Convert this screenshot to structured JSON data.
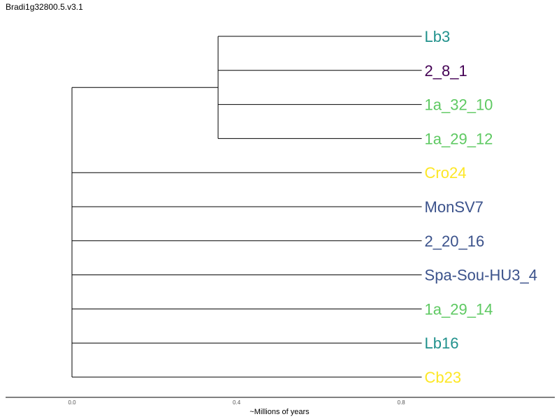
{
  "title": "Bradi1g32800.5.v3.1",
  "axis": {
    "label": "~Millions of years",
    "ticks": [
      "0.0",
      "0.4",
      "0.8"
    ]
  },
  "tree": {
    "root_age": 0.0,
    "clade_age": 0.355,
    "tip_age": 0.86,
    "leaves": [
      {
        "name": "Lb3",
        "color": "#21918c"
      },
      {
        "name": "2_8_1",
        "color": "#440154"
      },
      {
        "name": "1a_32_10",
        "color": "#5ec962"
      },
      {
        "name": "1a_29_12",
        "color": "#5ec962"
      },
      {
        "name": "Cro24",
        "color": "#fde725"
      },
      {
        "name": "MonSV7",
        "color": "#3b528b"
      },
      {
        "name": "2_20_16",
        "color": "#3b528b"
      },
      {
        "name": "Spa-Sou-HU3_4",
        "color": "#3b528b"
      },
      {
        "name": "1a_29_14",
        "color": "#5ec962"
      },
      {
        "name": "Lb16",
        "color": "#21918c"
      },
      {
        "name": "Cb23",
        "color": "#fde725"
      }
    ]
  }
}
